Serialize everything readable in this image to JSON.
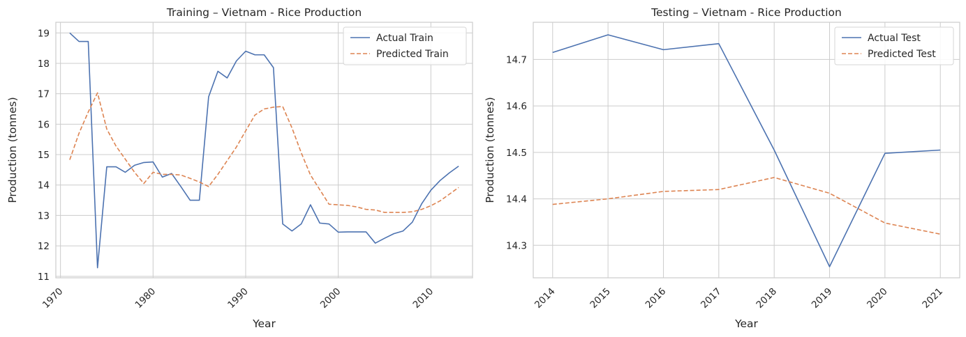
{
  "chart_data": [
    {
      "type": "line",
      "title": "Training – Vietnam - Rice Production",
      "xlabel": "Year",
      "ylabel": "Production (tonnes)",
      "xlim": [
        1969.5,
        2014.5
      ],
      "ylim": [
        10.95,
        19.35
      ],
      "xticks": [
        "1970",
        "1980",
        "1990",
        "2000",
        "2010"
      ],
      "yticks": [
        "11",
        "12",
        "13",
        "14",
        "15",
        "16",
        "17",
        "18",
        "19"
      ],
      "grid": true,
      "legend_position": "top-right",
      "series": [
        {
          "name": "Actual Train",
          "color": "#4c72b0",
          "dash": "solid",
          "x": [
            1971,
            1972,
            1973,
            1974,
            1975,
            1976,
            1977,
            1978,
            1979,
            1980,
            1981,
            1982,
            1983,
            1984,
            1985,
            1986,
            1987,
            1988,
            1989,
            1990,
            1991,
            1992,
            1993,
            1994,
            1995,
            1996,
            1997,
            1998,
            1999,
            2000,
            2001,
            2002,
            2003,
            2004,
            2005,
            2006,
            2007,
            2008,
            2009,
            2010,
            2011,
            2012,
            2013
          ],
          "y": [
            19.0,
            18.72,
            18.72,
            11.28,
            14.6,
            14.6,
            14.42,
            14.65,
            14.74,
            14.76,
            14.26,
            14.38,
            13.95,
            13.5,
            13.5,
            16.9,
            17.74,
            17.52,
            18.08,
            18.4,
            18.28,
            18.28,
            17.86,
            12.72,
            12.49,
            12.72,
            13.35,
            12.75,
            12.72,
            12.45,
            12.46,
            12.46,
            12.46,
            12.09,
            12.25,
            12.4,
            12.49,
            12.78,
            13.38,
            13.83,
            14.15,
            14.4,
            14.62
          ]
        },
        {
          "name": "Predicted Train",
          "color": "#dd8452",
          "dash": "dashed",
          "x": [
            1971,
            1972,
            1973,
            1974,
            1975,
            1976,
            1977,
            1978,
            1979,
            1980,
            1981,
            1982,
            1983,
            1984,
            1985,
            1986,
            1987,
            1988,
            1989,
            1990,
            1991,
            1992,
            1993,
            1994,
            1995,
            1996,
            1997,
            1998,
            1999,
            2000,
            2001,
            2002,
            2003,
            2004,
            2005,
            2006,
            2007,
            2008,
            2009,
            2010,
            2011,
            2012,
            2013
          ],
          "y": [
            14.83,
            15.7,
            16.4,
            17.03,
            15.84,
            15.28,
            14.85,
            14.42,
            14.05,
            14.42,
            14.35,
            14.35,
            14.33,
            14.22,
            14.1,
            13.95,
            14.35,
            14.8,
            15.25,
            15.78,
            16.3,
            16.5,
            16.56,
            16.58,
            15.88,
            15.06,
            14.33,
            13.85,
            13.37,
            13.35,
            13.33,
            13.28,
            13.2,
            13.18,
            13.1,
            13.1,
            13.1,
            13.12,
            13.2,
            13.32,
            13.48,
            13.7,
            13.92
          ]
        }
      ]
    },
    {
      "type": "line",
      "title": "Testing – Vietnam - Rice Production",
      "xlabel": "Year",
      "ylabel": "Production (tonnes)",
      "xlim": [
        2013.65,
        2021.35
      ],
      "ylim": [
        14.23,
        14.78
      ],
      "xticks": [
        "2014",
        "2015",
        "2016",
        "2017",
        "2018",
        "2019",
        "2020",
        "2021"
      ],
      "yticks": [
        "14.3",
        "14.4",
        "14.5",
        "14.6",
        "14.7"
      ],
      "grid": true,
      "legend_position": "top-right",
      "series": [
        {
          "name": "Actual Test",
          "color": "#4c72b0",
          "dash": "solid",
          "x": [
            2014,
            2015,
            2016,
            2017,
            2018,
            2019,
            2020,
            2021
          ],
          "y": [
            14.715,
            14.753,
            14.721,
            14.734,
            14.505,
            14.254,
            14.498,
            14.505
          ]
        },
        {
          "name": "Predicted Test",
          "color": "#dd8452",
          "dash": "dashed",
          "x": [
            2014,
            2015,
            2016,
            2017,
            2018,
            2019,
            2020,
            2021
          ],
          "y": [
            14.388,
            14.4,
            14.416,
            14.42,
            14.446,
            14.412,
            14.348,
            14.324
          ]
        }
      ]
    }
  ]
}
